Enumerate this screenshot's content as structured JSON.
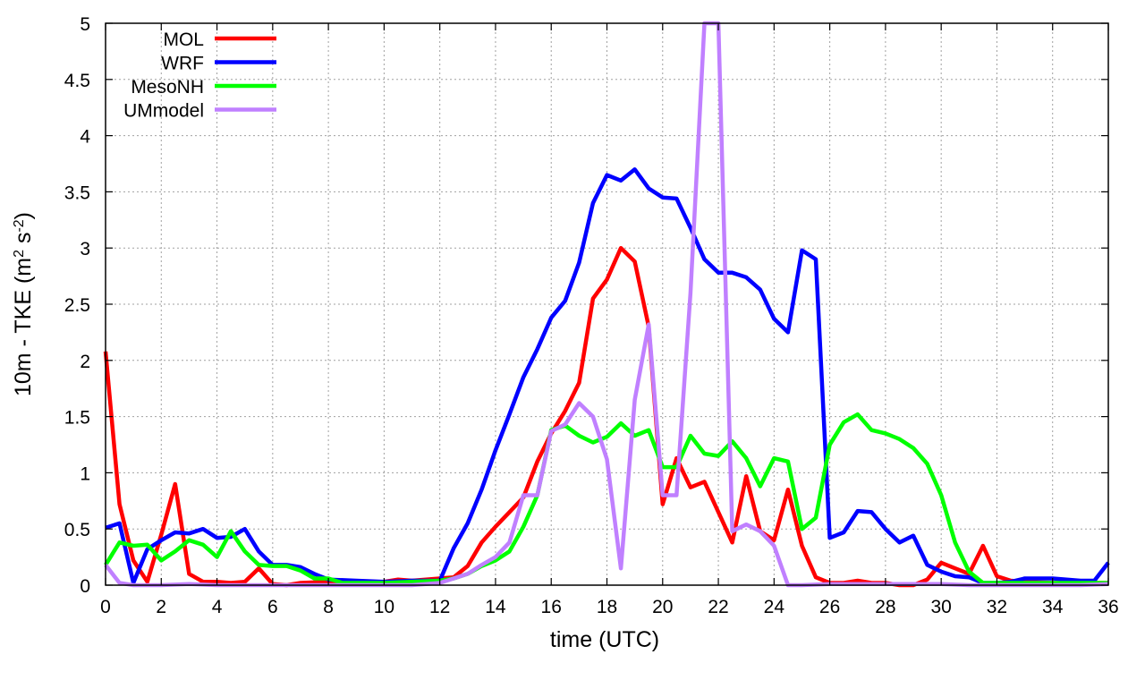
{
  "chart_data": {
    "type": "line",
    "xlabel": "time (UTC)",
    "ylabel": "10m - TKE (m",
    "ylabel_sup1": "2",
    "ylabel_mid": " s",
    "ylabel_sup2": "-2",
    "ylabel_end": ")",
    "xlim": [
      0,
      36
    ],
    "ylim": [
      0,
      5
    ],
    "xticks": [
      0,
      2,
      4,
      6,
      8,
      10,
      12,
      14,
      16,
      18,
      20,
      22,
      24,
      26,
      28,
      30,
      32,
      34,
      36
    ],
    "yticks": [
      0,
      0.5,
      1,
      1.5,
      2,
      2.5,
      3,
      3.5,
      4,
      4.5,
      5
    ],
    "ytick_labels": [
      "0",
      "0.5",
      "1",
      "1.5",
      "2",
      "2.5",
      "3",
      "3.5",
      "4",
      "4.5",
      "5"
    ],
    "grid": true,
    "legend_position": "top-left",
    "series": [
      {
        "name": "MOL",
        "color": "#ff0000",
        "x": [
          0,
          0.5,
          1,
          1.5,
          2,
          2.5,
          3,
          3.5,
          4,
          4.5,
          5,
          5.5,
          6,
          6.5,
          7,
          8,
          9,
          10,
          10.5,
          11,
          11.5,
          12,
          12.5,
          13,
          13.5,
          14,
          14.5,
          15,
          15.5,
          16,
          16.5,
          17,
          17.5,
          18,
          18.5,
          19,
          19.5,
          20,
          20.5,
          21,
          21.5,
          22,
          22.5,
          23,
          23.5,
          24,
          24.5,
          25,
          25.5,
          26,
          26.5,
          27,
          27.5,
          28,
          28.5,
          29,
          29.5,
          30,
          30.5,
          31,
          31.5,
          32,
          32.5,
          33,
          34,
          35,
          36
        ],
        "y": [
          2.08,
          0.72,
          0.22,
          0.03,
          0.45,
          0.9,
          0.1,
          0.03,
          0.03,
          0.02,
          0.03,
          0.15,
          0.01,
          0.0,
          0.02,
          0.03,
          0.02,
          0.03,
          0.05,
          0.04,
          0.05,
          0.06,
          0.07,
          0.17,
          0.38,
          0.52,
          0.65,
          0.78,
          1.1,
          1.35,
          1.55,
          1.8,
          2.55,
          2.72,
          3.0,
          2.88,
          2.3,
          0.72,
          1.13,
          0.87,
          0.92,
          0.65,
          0.38,
          0.97,
          0.48,
          0.4,
          0.85,
          0.35,
          0.07,
          0.02,
          0.02,
          0.04,
          0.02,
          0.02,
          0.0,
          0.0,
          0.05,
          0.2,
          0.15,
          0.1,
          0.35,
          0.08,
          0.04,
          0.03,
          0.02,
          0.02,
          0.02
        ]
      },
      {
        "name": "WRF",
        "color": "#0000ff",
        "x": [
          0,
          0.5,
          1,
          1.5,
          2,
          2.5,
          3,
          3.5,
          4,
          4.5,
          5,
          5.5,
          6,
          6.5,
          7,
          7.5,
          8,
          9,
          10,
          11,
          11.5,
          12,
          12.5,
          13,
          13.5,
          14,
          14.5,
          15,
          15.5,
          16,
          16.5,
          17,
          17.5,
          18,
          18.5,
          19,
          19.5,
          20,
          20.5,
          21,
          21.5,
          22,
          22.5,
          23,
          23.5,
          24,
          24.5,
          25,
          25.5,
          26,
          26.5,
          27,
          27.5,
          28,
          28.5,
          29,
          29.5,
          30,
          30.5,
          31,
          31.5,
          32,
          32.5,
          33,
          34,
          35,
          35.5,
          36
        ],
        "y": [
          0.51,
          0.55,
          0.02,
          0.32,
          0.4,
          0.47,
          0.46,
          0.5,
          0.42,
          0.43,
          0.5,
          0.3,
          0.18,
          0.18,
          0.16,
          0.1,
          0.05,
          0.04,
          0.03,
          0.04,
          0.04,
          0.04,
          0.33,
          0.55,
          0.85,
          1.2,
          1.52,
          1.85,
          2.1,
          2.38,
          2.53,
          2.87,
          3.4,
          3.65,
          3.6,
          3.7,
          3.53,
          3.45,
          3.44,
          3.18,
          2.9,
          2.78,
          2.78,
          2.74,
          2.63,
          2.37,
          2.25,
          2.98,
          2.9,
          0.42,
          0.47,
          0.66,
          0.65,
          0.5,
          0.38,
          0.44,
          0.18,
          0.12,
          0.08,
          0.07,
          0.02,
          0.02,
          0.03,
          0.06,
          0.06,
          0.04,
          0.04,
          0.2
        ]
      },
      {
        "name": "MesoNH",
        "color": "#00ff00",
        "x": [
          0,
          0.5,
          1,
          1.5,
          2,
          2.5,
          3,
          3.5,
          4,
          4.5,
          5,
          5.5,
          6,
          6.5,
          7,
          7.5,
          8,
          8.5,
          9,
          10,
          11,
          12,
          12.5,
          13,
          13.5,
          14,
          14.5,
          15,
          15.5,
          16,
          16.5,
          17,
          17.5,
          18,
          18.5,
          19,
          19.5,
          20,
          20.5,
          21,
          21.5,
          22,
          22.5,
          23,
          23.5,
          24,
          24.5,
          25,
          25.5,
          26,
          26.5,
          27,
          27.5,
          28,
          28.5,
          29,
          29.5,
          30,
          30.5,
          31,
          31.5,
          32,
          33,
          34,
          35,
          36
        ],
        "y": [
          0.18,
          0.38,
          0.35,
          0.36,
          0.22,
          0.3,
          0.4,
          0.36,
          0.25,
          0.48,
          0.3,
          0.18,
          0.17,
          0.17,
          0.13,
          0.06,
          0.06,
          0.02,
          0.02,
          0.02,
          0.03,
          0.04,
          0.06,
          0.1,
          0.17,
          0.22,
          0.3,
          0.52,
          0.8,
          1.38,
          1.42,
          1.33,
          1.27,
          1.32,
          1.44,
          1.33,
          1.38,
          1.05,
          1.05,
          1.33,
          1.17,
          1.15,
          1.28,
          1.13,
          0.88,
          1.13,
          1.1,
          0.5,
          0.6,
          1.25,
          1.45,
          1.52,
          1.38,
          1.35,
          1.3,
          1.22,
          1.08,
          0.8,
          0.38,
          0.12,
          0.02,
          0.02,
          0.02,
          0.02,
          0.02,
          0.02
        ]
      },
      {
        "name": "UMmodel",
        "color": "#c080ff",
        "x": [
          0,
          0.5,
          1,
          2,
          3,
          4,
          5,
          6,
          7,
          8,
          9,
          10,
          11,
          12,
          12.5,
          13,
          13.5,
          14,
          14.5,
          15,
          15.5,
          16,
          16.5,
          17,
          17.5,
          18,
          18.5,
          19,
          19.5,
          20,
          20.5,
          21,
          21.5,
          22,
          22.5,
          23,
          23.5,
          24,
          24.5,
          25,
          26,
          27,
          28,
          29,
          30,
          31,
          32,
          33,
          34,
          35,
          36
        ],
        "y": [
          0.18,
          0.02,
          0.0,
          0.0,
          0.01,
          0.0,
          0.0,
          0.0,
          0.0,
          0.0,
          0.0,
          0.0,
          0.0,
          0.02,
          0.06,
          0.1,
          0.18,
          0.25,
          0.38,
          0.8,
          0.8,
          1.37,
          1.43,
          1.62,
          1.5,
          1.12,
          0.15,
          1.65,
          2.32,
          0.8,
          0.8,
          2.6,
          5.0,
          5.0,
          0.48,
          0.54,
          0.48,
          0.35,
          0.0,
          0.0,
          0.01,
          0.01,
          0.01,
          0.01,
          0.01,
          0.0,
          0.0,
          0.0,
          0.0,
          0.0,
          0.01
        ]
      }
    ]
  }
}
